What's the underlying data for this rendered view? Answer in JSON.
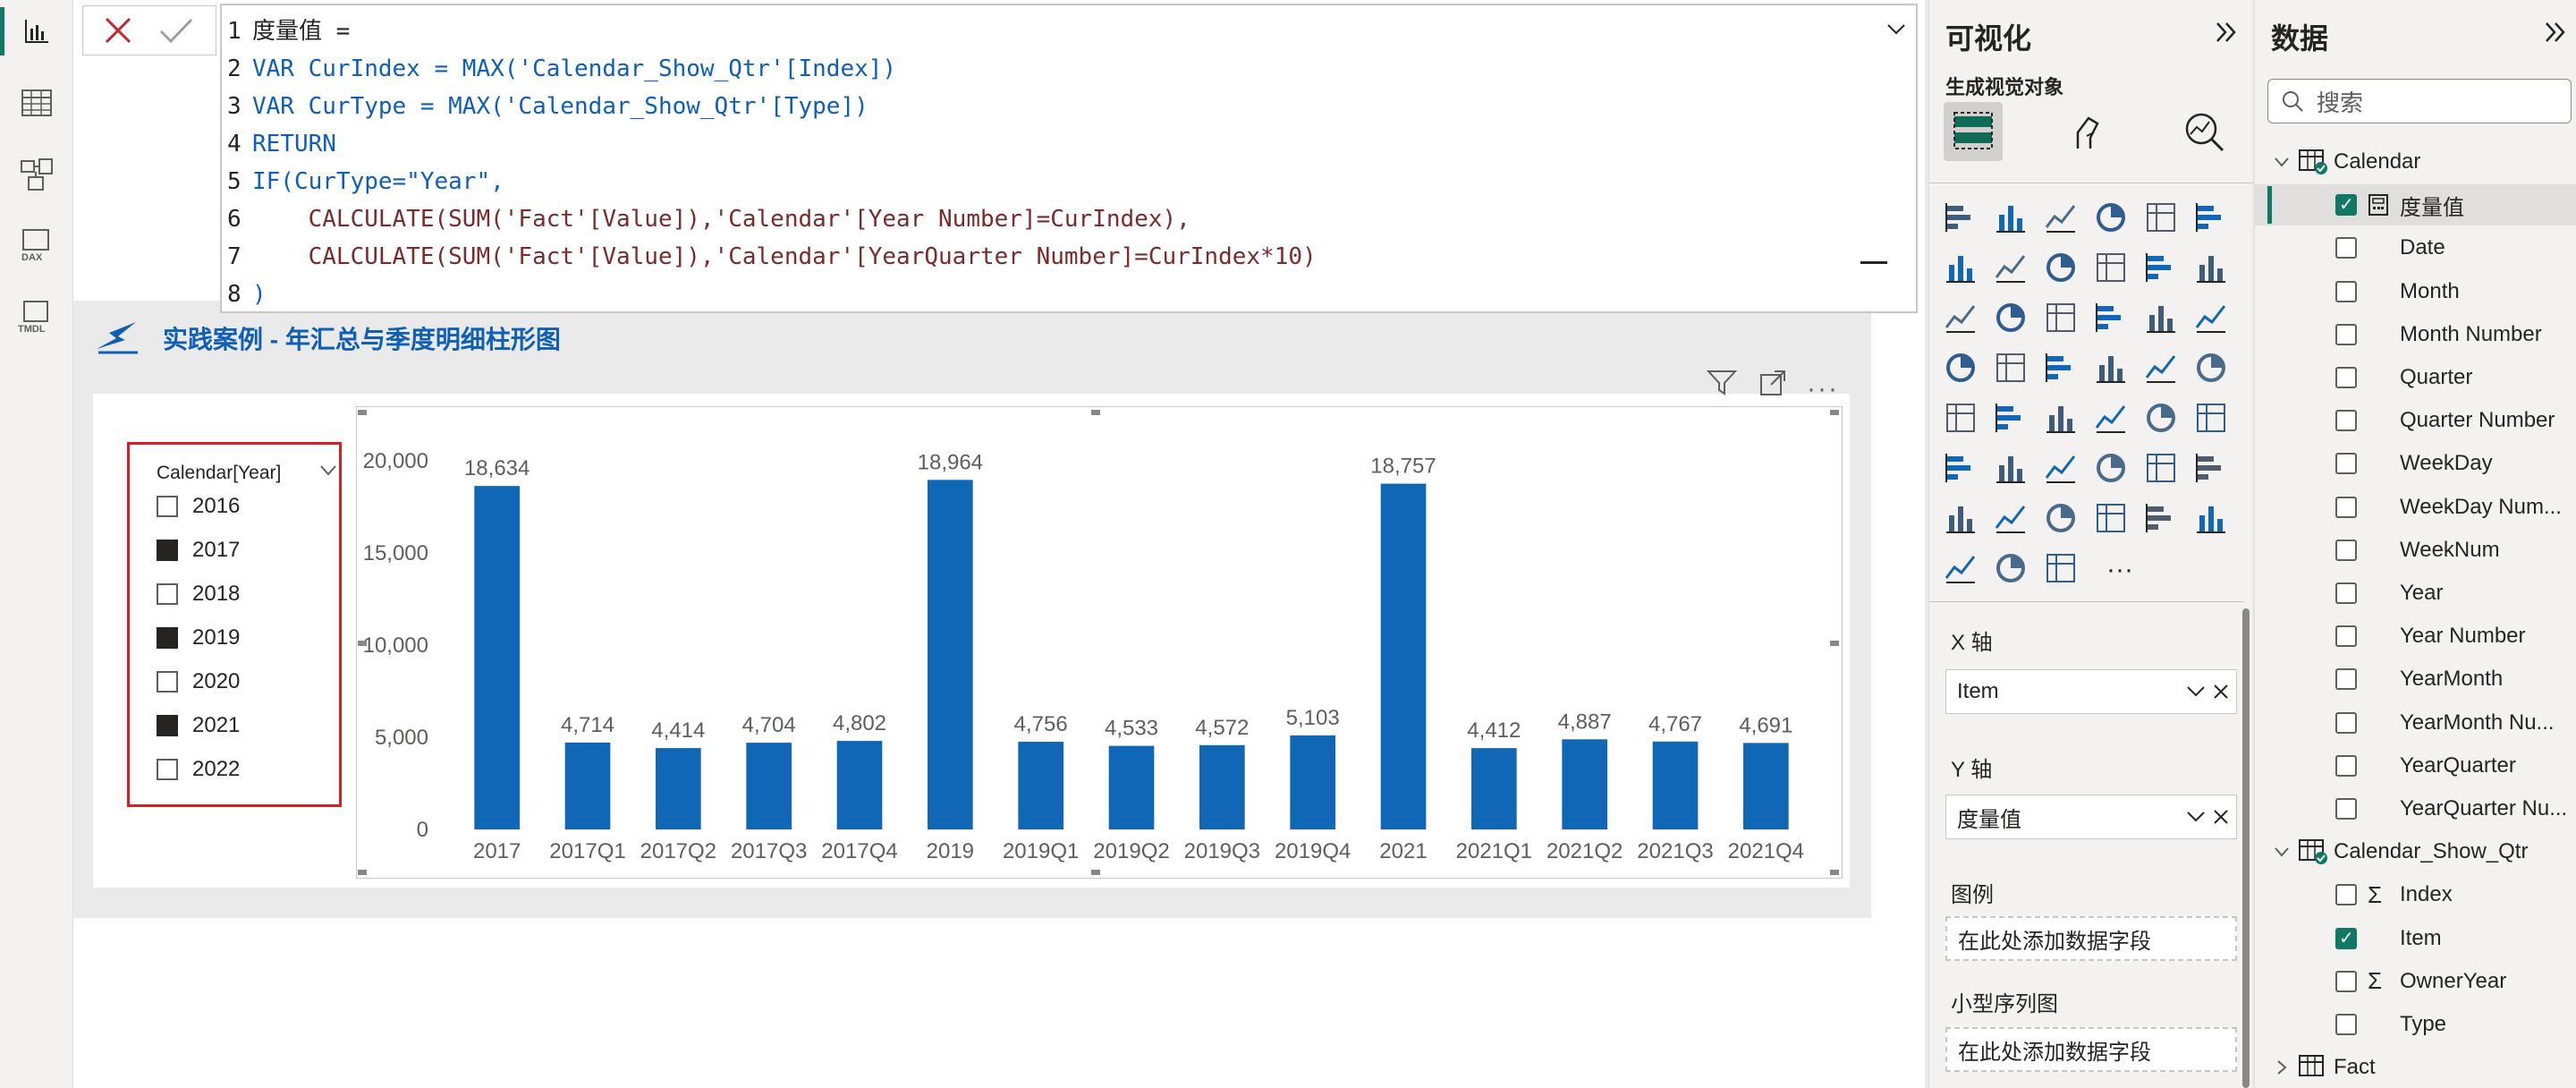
{
  "formula": {
    "lines": [
      {
        "n": "1",
        "text": "度量值 ="
      },
      {
        "n": "2",
        "text": "VAR CurIndex = MAX('Calendar_Show_Qtr'[Index])"
      },
      {
        "n": "3",
        "text": "VAR CurType = MAX('Calendar_Show_Qtr'[Type])"
      },
      {
        "n": "4",
        "text": "RETURN"
      },
      {
        "n": "5",
        "text": "IF(CurType=\"Year\","
      },
      {
        "n": "6",
        "text": "    CALCULATE(SUM('Fact'[Value]),'Calendar'[Year Number]=CurIndex),"
      },
      {
        "n": "7",
        "text": "    CALCULATE(SUM('Fact'[Value]),'Calendar'[YearQuarter Number]=CurIndex*10)"
      },
      {
        "n": "8",
        "text": ")"
      }
    ]
  },
  "page": {
    "title": "实践案例 - 年汇总与季度明细柱形图"
  },
  "slicer": {
    "title": "Calendar[Year]",
    "items": [
      {
        "label": "2016",
        "checked": false
      },
      {
        "label": "2017",
        "checked": true
      },
      {
        "label": "2018",
        "checked": false
      },
      {
        "label": "2019",
        "checked": true
      },
      {
        "label": "2020",
        "checked": false
      },
      {
        "label": "2021",
        "checked": true
      },
      {
        "label": "2022",
        "checked": false
      }
    ]
  },
  "chart_data": {
    "type": "bar",
    "categories": [
      "2017",
      "2017Q1",
      "2017Q2",
      "2017Q3",
      "2017Q4",
      "2019",
      "2019Q1",
      "2019Q2",
      "2019Q3",
      "2019Q4",
      "2021",
      "2021Q1",
      "2021Q2",
      "2021Q3",
      "2021Q4"
    ],
    "values": [
      18634,
      4714,
      4414,
      4704,
      4802,
      18964,
      4756,
      4533,
      4572,
      5103,
      18757,
      4412,
      4887,
      4767,
      4691
    ],
    "labels": [
      "18,634",
      "4,714",
      "4,414",
      "4,704",
      "4,802",
      "18,964",
      "4,756",
      "4,533",
      "4,572",
      "5,103",
      "18,757",
      "4,412",
      "4,887",
      "4,767",
      "4,691"
    ],
    "yticks": [
      0,
      5000,
      10000,
      15000,
      20000
    ],
    "ytick_labels": [
      "0",
      "5,000",
      "10,000",
      "15,000",
      "20,000"
    ],
    "ylim": [
      0,
      20000
    ],
    "color": "#0f67b5",
    "title": "",
    "xlabel": "",
    "ylabel": ""
  },
  "viz_pane": {
    "title": "可视化",
    "subtitle": "生成视觉对象",
    "x_axis_label": "X 轴",
    "x_axis_field": "Item",
    "y_axis_label": "Y 轴",
    "y_axis_field": "度量值",
    "legend_label": "图例",
    "legend_placeholder": "在此处添加数据字段",
    "small_multiples_label": "小型序列图",
    "small_multiples_placeholder": "在此处添加数据字段",
    "more": "···"
  },
  "data_pane": {
    "title": "数据",
    "search_placeholder": "搜索",
    "tables": [
      {
        "name": "Calendar",
        "fields": [
          {
            "label": "度量值",
            "checked": true,
            "measure": true
          },
          {
            "label": "Date",
            "checked": false
          },
          {
            "label": "Month",
            "checked": false
          },
          {
            "label": "Month Number",
            "checked": false
          },
          {
            "label": "Quarter",
            "checked": false
          },
          {
            "label": "Quarter Number",
            "checked": false
          },
          {
            "label": "WeekDay",
            "checked": false
          },
          {
            "label": "WeekDay Num...",
            "checked": false
          },
          {
            "label": "WeekNum",
            "checked": false
          },
          {
            "label": "Year",
            "checked": false
          },
          {
            "label": "Year Number",
            "checked": false
          },
          {
            "label": "YearMonth",
            "checked": false
          },
          {
            "label": "YearMonth Nu...",
            "checked": false
          },
          {
            "label": "YearQuarter",
            "checked": false
          },
          {
            "label": "YearQuarter Nu...",
            "checked": false
          }
        ]
      },
      {
        "name": "Calendar_Show_Qtr",
        "fields": [
          {
            "label": "Index",
            "checked": false,
            "sigma": true
          },
          {
            "label": "Item",
            "checked": true
          },
          {
            "label": "OwnerYear",
            "checked": false,
            "sigma": true
          },
          {
            "label": "Type",
            "checked": false
          }
        ]
      },
      {
        "name": "Fact"
      }
    ]
  },
  "colors": {
    "accent": "#117865",
    "bar": "#0f67b5",
    "slicer_border": "#d71e24",
    "title": "#0e5fb5"
  }
}
